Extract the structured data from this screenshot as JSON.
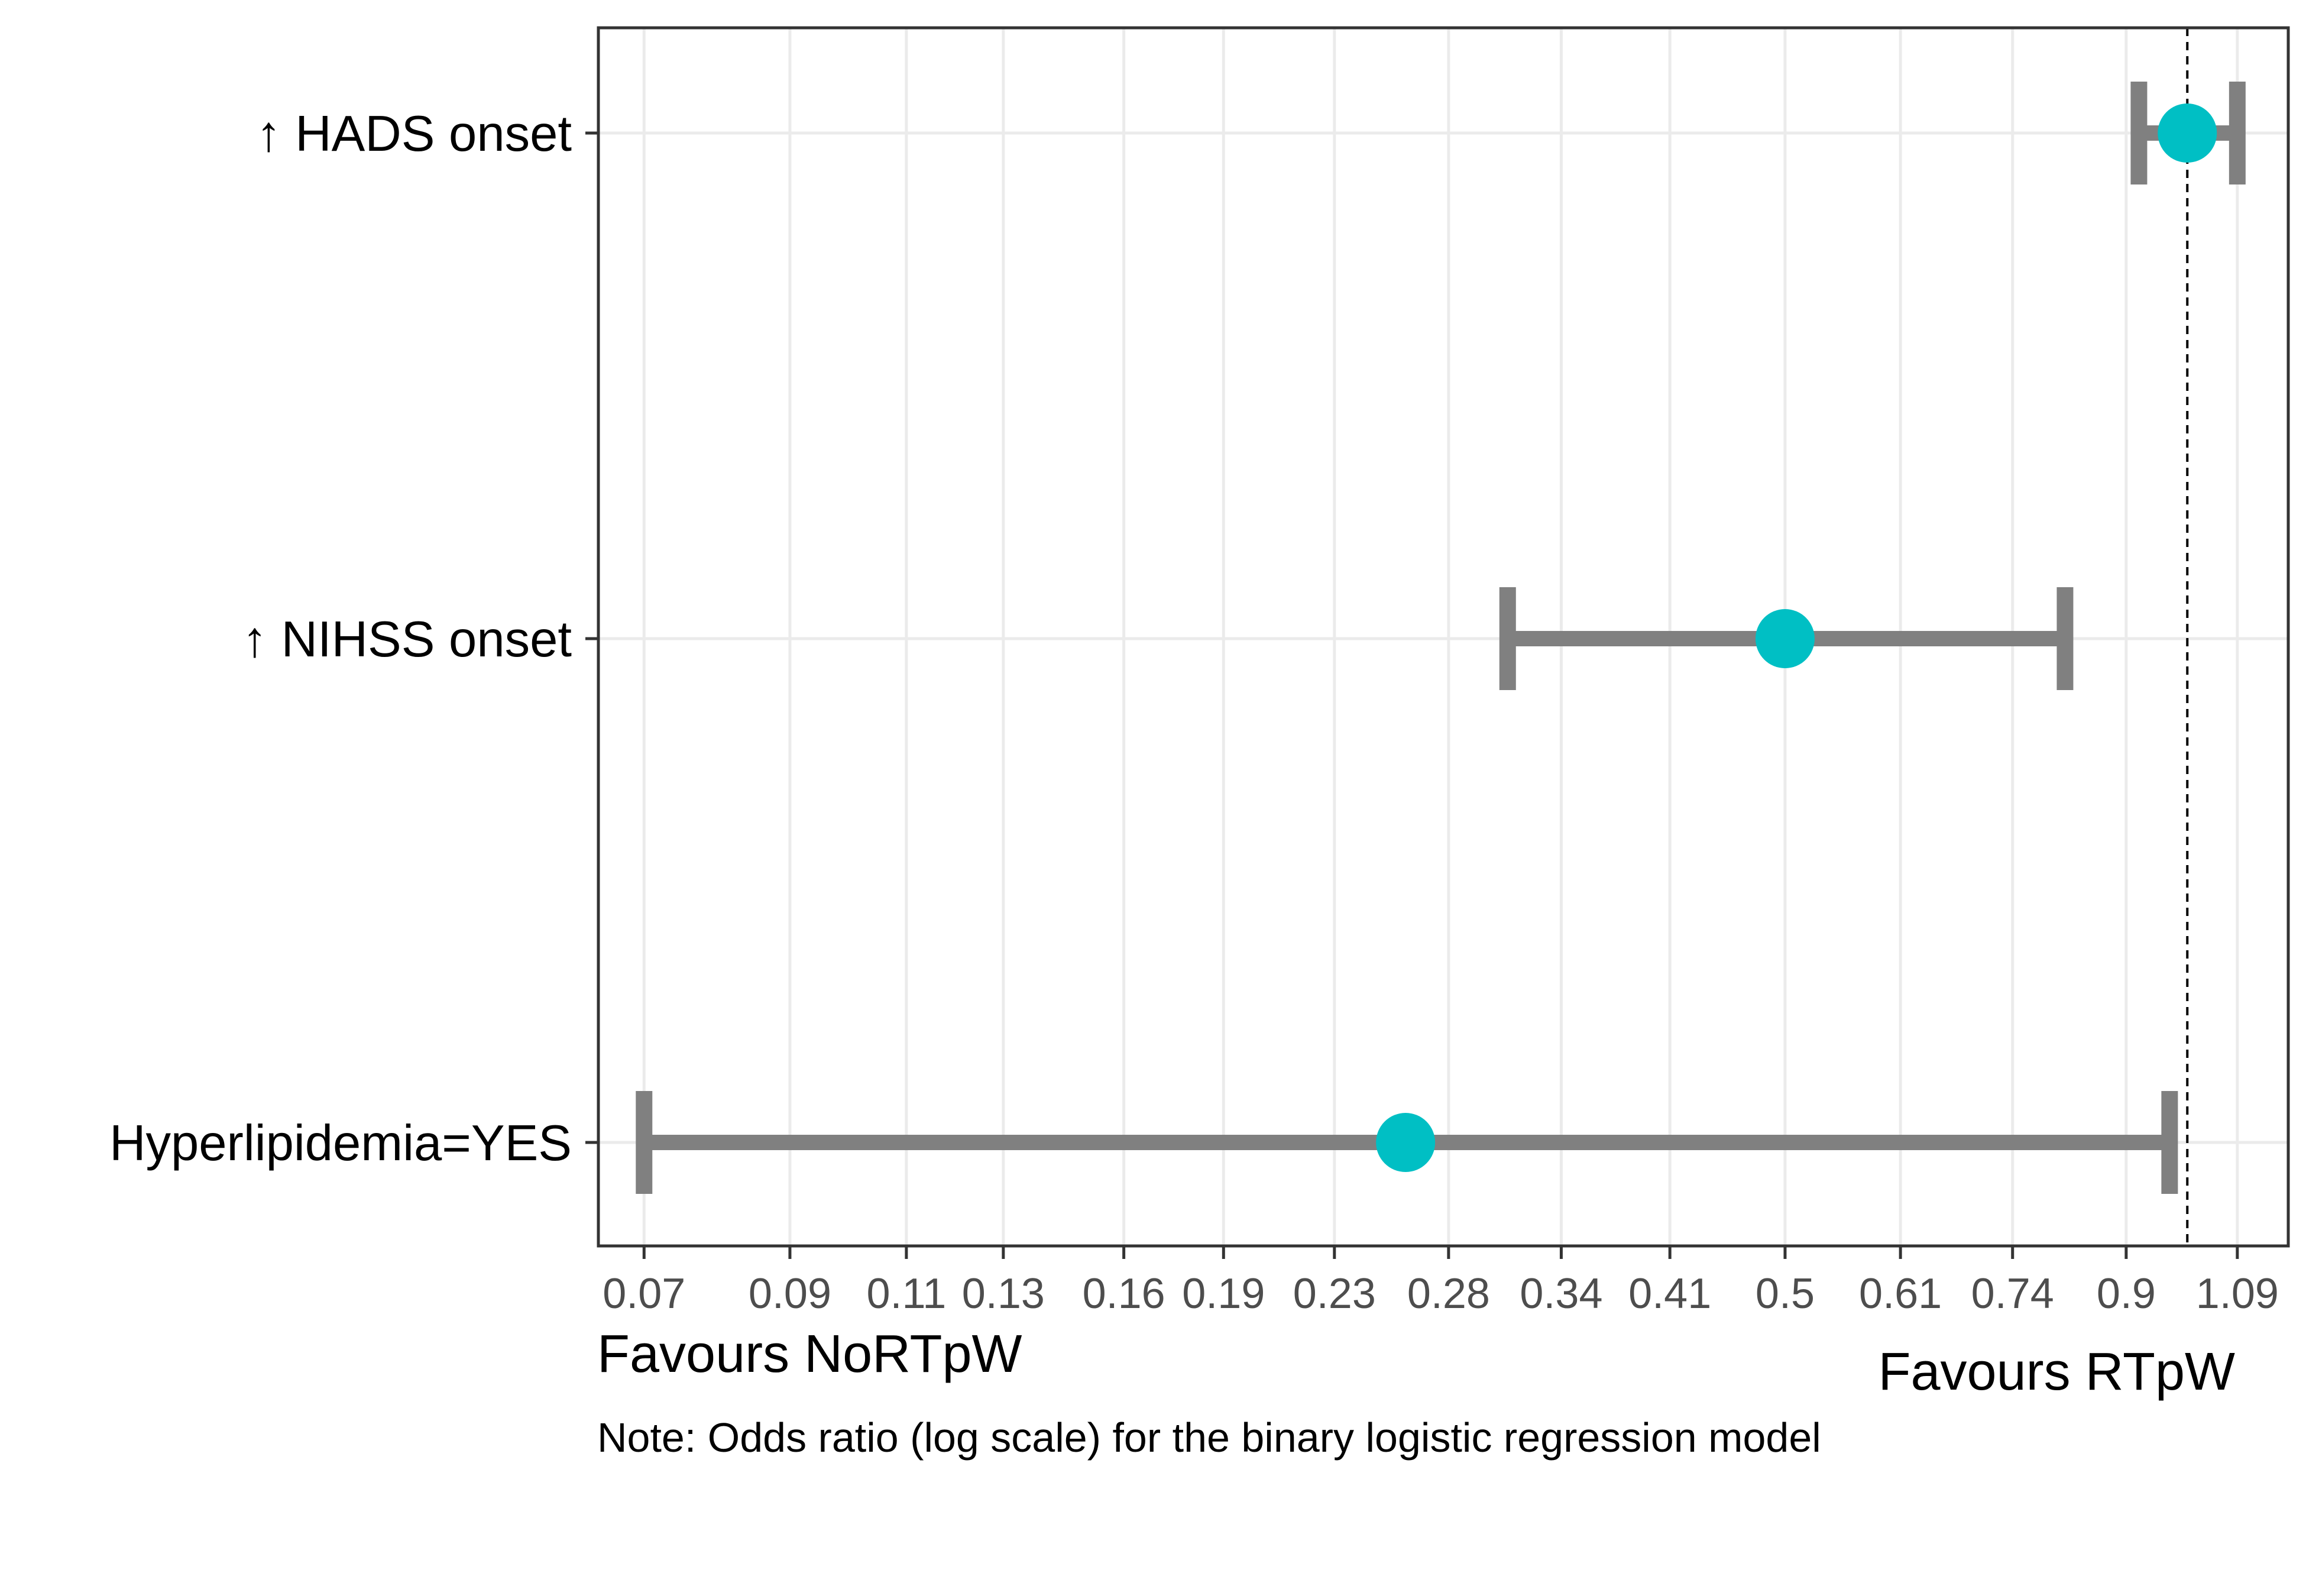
{
  "chart_data": {
    "type": "forest",
    "x_scale": "log",
    "xlim": [
      0.0647,
      1.19
    ],
    "xticks": [
      "0.07",
      "0.09",
      "0.11",
      "0.13",
      "0.16",
      "0.19",
      "0.23",
      "0.28",
      "0.34",
      "0.41",
      "0.5",
      "0.61",
      "0.74",
      "0.9",
      "1.09"
    ],
    "reference_line": 1.0,
    "grid": true,
    "rows": [
      {
        "label": "↑ HADS onset",
        "estimate": 1.0,
        "lower": 0.92,
        "upper": 1.09
      },
      {
        "label": "↑ NIHSS onset",
        "estimate": 0.5,
        "lower": 0.31,
        "upper": 0.81
      },
      {
        "label": "Hyperlipidemia=YES",
        "estimate": 0.26,
        "lower": 0.07,
        "upper": 0.97
      }
    ],
    "left_annotation": "Favours NoRTpW",
    "right_annotation": "Favours RTpW",
    "note": "Note: Odds ratio (log scale) for the binary logistic regression model",
    "colors": {
      "point": "#00BFC4",
      "interval": "#808080",
      "grid": "#EBEBEB",
      "panel_border": "#333333",
      "reference": "#000000"
    }
  }
}
